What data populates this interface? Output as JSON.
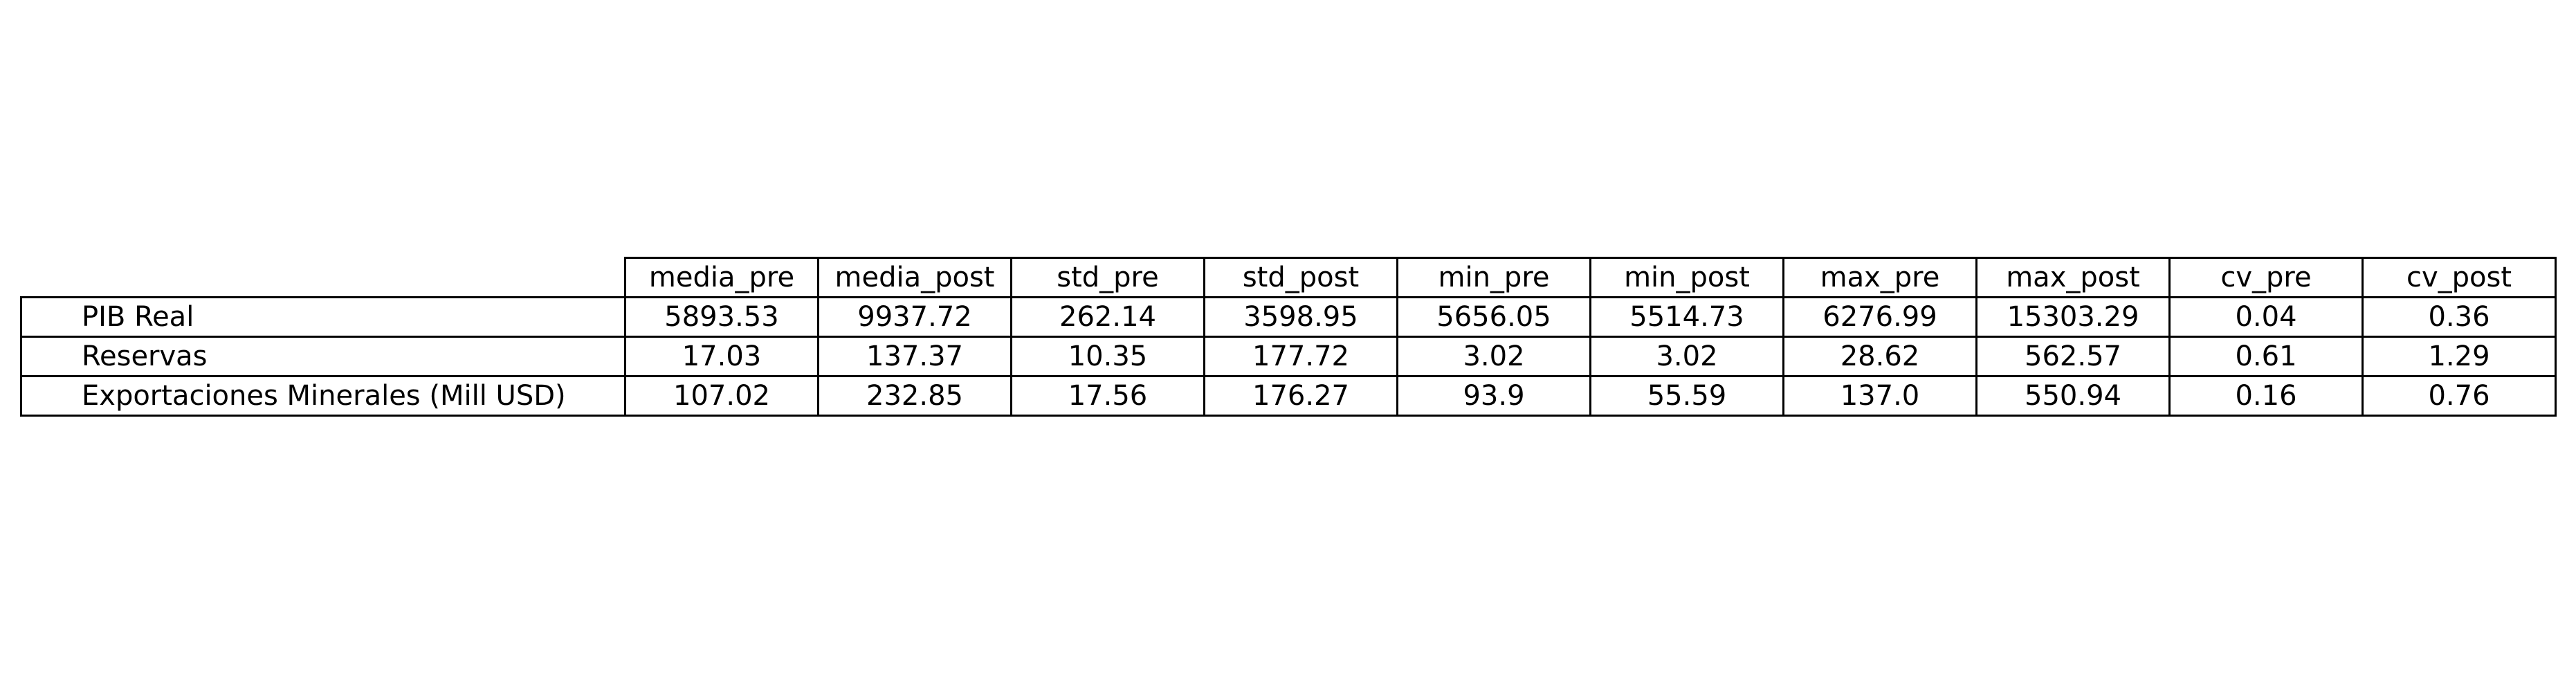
{
  "chart_data": {
    "type": "table",
    "columns": [
      "media_pre",
      "media_post",
      "std_pre",
      "std_post",
      "min_pre",
      "min_post",
      "max_pre",
      "max_post",
      "cv_pre",
      "cv_post"
    ],
    "rows": [
      {
        "label": "PIB Real",
        "values": [
          "5893.53",
          "9937.72",
          "262.14",
          "3598.95",
          "5656.05",
          "5514.73",
          "6276.99",
          "15303.29",
          "0.04",
          "0.36"
        ]
      },
      {
        "label": "Reservas",
        "values": [
          "17.03",
          "137.37",
          "10.35",
          "177.72",
          "3.02",
          "3.02",
          "28.62",
          "562.57",
          "0.61",
          "1.29"
        ]
      },
      {
        "label": "Exportaciones Minerales (Mill USD)",
        "values": [
          "107.02",
          "232.85",
          "17.56",
          "176.27",
          "93.9",
          "55.59",
          "137.0",
          "550.94",
          "0.16",
          "0.76"
        ]
      }
    ]
  }
}
